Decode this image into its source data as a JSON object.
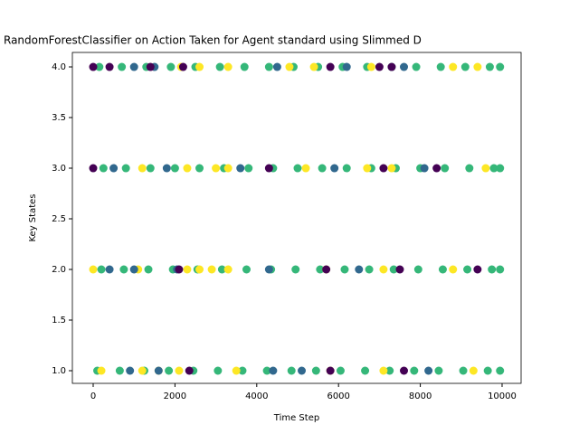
{
  "chart_data": {
    "type": "scatter",
    "title": "RandomForestClassifier on Action Taken for Agent standard using Slimmed D",
    "x_label": "Time Step",
    "y_label": "Key States",
    "xlim": [
      -509,
      10465
    ],
    "ylim": [
      0.875,
      4.143
    ],
    "xticks": [
      0,
      2000,
      4000,
      6000,
      8000,
      10000
    ],
    "yticks": [
      {
        "value": 1,
        "label": "1.0"
      },
      1.5,
      {
        "value": 2,
        "label": "2.0"
      },
      2.5,
      {
        "value": 3,
        "label": "3.0"
      },
      3.5,
      {
        "value": 4,
        "label": "4.0"
      }
    ],
    "series": [
      {
        "color": "#35b779",
        "x": [
          150,
          700,
          1300,
          1900,
          2500,
          3100,
          3700,
          4300,
          4900,
          5500,
          6100,
          6700,
          7300,
          7900,
          8500,
          9100,
          9700,
          9950,
          250,
          800,
          1400,
          2000,
          2600,
          3200,
          3800,
          4400,
          5000,
          5600,
          6200,
          6800,
          7400,
          8000,
          8600,
          9200,
          9800,
          9950,
          200,
          750,
          1350,
          1950,
          2550,
          3150,
          3750,
          4350,
          4950,
          5550,
          6150,
          6750,
          7350,
          7950,
          8550,
          9150,
          9750,
          9950,
          100,
          650,
          1250,
          1850,
          2450,
          3050,
          3650,
          4250,
          4850,
          5450,
          6050,
          6650,
          7250,
          7850,
          8450,
          9050,
          9650,
          9950
        ],
        "values": [
          4,
          4,
          4,
          4,
          4,
          4,
          4,
          4,
          4,
          4,
          4,
          4,
          4,
          4,
          4,
          4,
          4,
          4,
          3,
          3,
          3,
          3,
          3,
          3,
          3,
          3,
          3,
          3,
          3,
          3,
          3,
          3,
          3,
          3,
          3,
          3,
          2,
          2,
          2,
          2,
          2,
          2,
          2,
          2,
          2,
          2,
          2,
          2,
          2,
          2,
          2,
          2,
          2,
          2,
          1,
          1,
          1,
          1,
          1,
          1,
          1,
          1,
          1,
          1,
          1,
          1,
          1,
          1,
          1,
          1,
          1,
          1
        ]
      },
      {
        "color": "#fde725",
        "x": [
          2150,
          2600,
          3300,
          4800,
          5400,
          6800,
          8800,
          9400,
          1200,
          2300,
          3000,
          3300,
          5200,
          6700,
          7300,
          9600,
          0,
          1100,
          2300,
          2600,
          2900,
          3300,
          5700,
          7100,
          8800,
          200,
          1200,
          1600,
          2100,
          3500,
          5800,
          7100,
          9300
        ],
        "values": [
          4,
          4,
          4,
          4,
          4,
          4,
          4,
          4,
          3,
          3,
          3,
          3,
          3,
          3,
          3,
          3,
          2,
          2,
          2,
          2,
          2,
          2,
          2,
          2,
          2,
          1,
          1,
          1,
          1,
          1,
          1,
          1,
          1
        ]
      },
      {
        "color": "#31688e",
        "x": [
          1000,
          1500,
          4500,
          6200,
          7600,
          500,
          1800,
          3600,
          5900,
          8100,
          400,
          1000,
          2050,
          4300,
          6500,
          900,
          1600,
          4400,
          5100,
          8200
        ],
        "values": [
          4,
          4,
          4,
          4,
          4,
          3,
          3,
          3,
          3,
          3,
          2,
          2,
          2,
          2,
          2,
          1,
          1,
          1,
          1,
          1
        ]
      },
      {
        "color": "#440154",
        "x": [
          0,
          400,
          1400,
          2200,
          5800,
          7000,
          7300,
          0,
          4300,
          7100,
          8400,
          2100,
          5700,
          7500,
          9400,
          2350,
          5800,
          7600
        ]
      },
      {
        "color": "#440154",
        "x": [
          0,
          400,
          1400,
          2200,
          5800,
          7000,
          7300,
          0,
          4300,
          7100,
          8400,
          2100,
          5700,
          7500,
          9400,
          2350,
          5800,
          7600
        ],
        "values": [
          4,
          4,
          4,
          4,
          4,
          4,
          4,
          3,
          3,
          3,
          3,
          2,
          2,
          2,
          2,
          1,
          1,
          1
        ]
      }
    ]
  }
}
